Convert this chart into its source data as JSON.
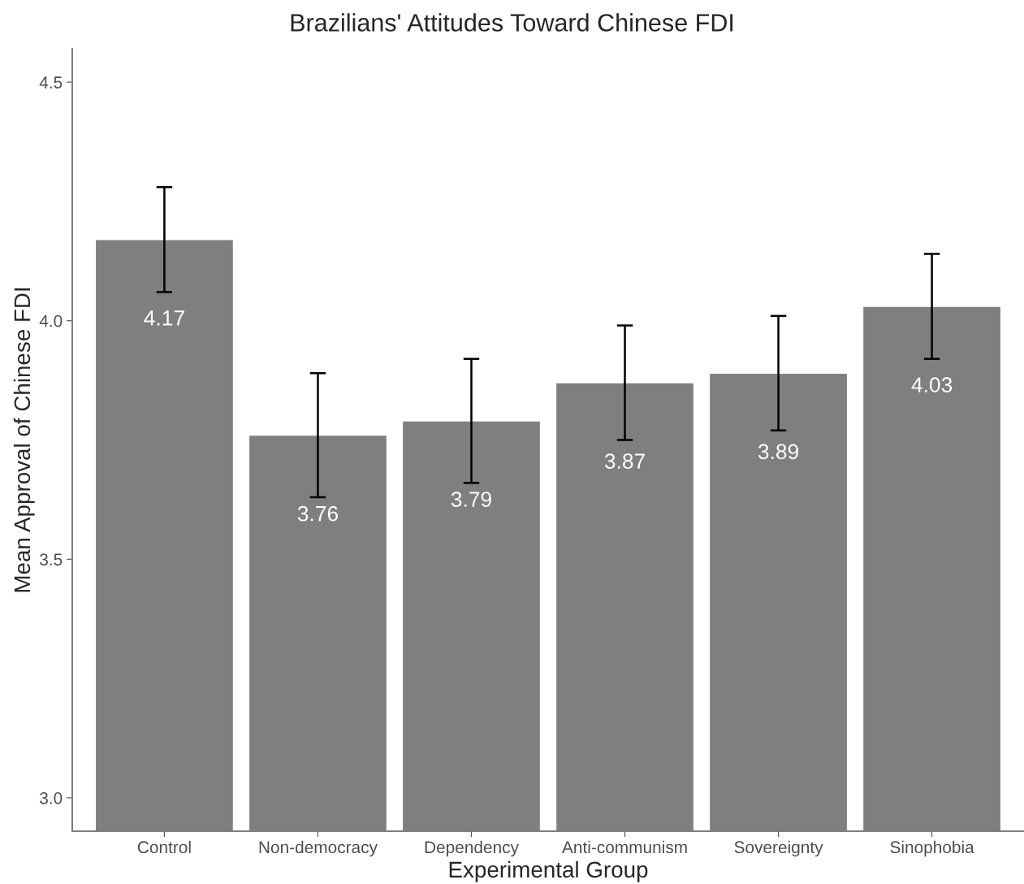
{
  "chart_data": {
    "type": "bar",
    "title": "Brazilians' Attitudes Toward Chinese FDI",
    "xlabel": "Experimental Group",
    "ylabel": "Mean Approval of Chinese FDI",
    "categories": [
      "Control",
      "Non-democracy",
      "Dependency",
      "Anti-communism",
      "Sovereignty",
      "Sinophobia"
    ],
    "values": [
      4.17,
      3.76,
      3.79,
      3.87,
      3.89,
      4.03
    ],
    "errors": [
      0.11,
      0.13,
      0.13,
      0.12,
      0.12,
      0.11
    ],
    "color": "#7f7f7f",
    "ylim": [
      2.93,
      4.57
    ],
    "yticks": [
      {
        "value": 3.0,
        "label": "3.0"
      },
      {
        "value": 3.5,
        "label": "3.5"
      },
      {
        "value": 4.0,
        "label": "4.0"
      },
      {
        "value": 4.5,
        "label": "4.5"
      }
    ],
    "data_labels": true,
    "grid": false,
    "legend": false
  }
}
